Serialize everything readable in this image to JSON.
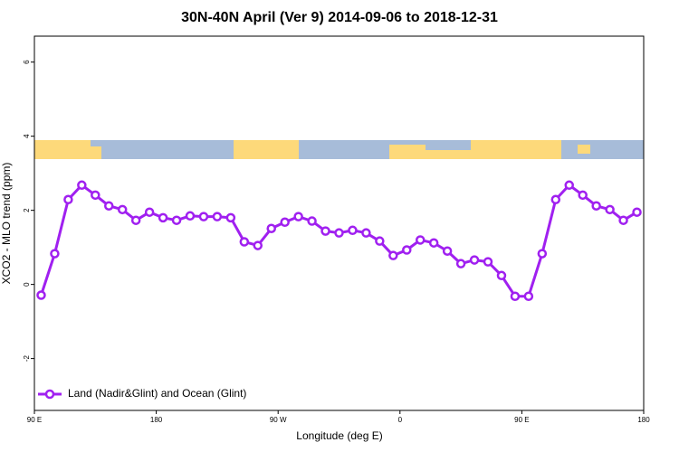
{
  "chart_data": {
    "type": "line",
    "title": "30N-40N April (Ver 9)   2014-09-06 to 2018-12-31",
    "x_label": "Longitude (deg E)",
    "y_label": "XCO2 - MLO trend (ppm)",
    "x": [
      95,
      105,
      115,
      125,
      135,
      145,
      155,
      165,
      175,
      185,
      195,
      205,
      215,
      225,
      235,
      245,
      255,
      265,
      275,
      285,
      295,
      305,
      315,
      325,
      335,
      345,
      355,
      365,
      375,
      385,
      395,
      405,
      415,
      425,
      435,
      445,
      455,
      465,
      475,
      485,
      495,
      505,
      515,
      525,
      535
    ],
    "series": [
      {
        "name": "Land (Nadir&Glint) and Ocean (Glint)",
        "color": "#a020f0",
        "values": [
          -0.29,
          0.83,
          2.29,
          2.68,
          2.41,
          2.12,
          2.02,
          1.73,
          1.95,
          1.8,
          1.73,
          1.85,
          1.83,
          1.83,
          1.8,
          1.15,
          1.05,
          1.51,
          1.68,
          1.83,
          1.71,
          1.44,
          1.39,
          1.46,
          1.39,
          1.17,
          0.78,
          0.93,
          1.2,
          1.12,
          0.9,
          0.56,
          0.66,
          0.61,
          0.24,
          -0.32,
          -0.32,
          0.83,
          2.29,
          2.68,
          2.41,
          2.12,
          2.02,
          1.73,
          1.95
        ]
      }
    ],
    "xlim": [
      90,
      540
    ],
    "xticks": [
      {
        "value": 90,
        "label": "90 E"
      },
      180,
      {
        "value": 270,
        "label": "90 W"
      },
      {
        "value": 360,
        "label": "0"
      },
      {
        "value": 450,
        "label": "90 E"
      },
      {
        "value": 540,
        "label": "180"
      }
    ],
    "ylim": [
      -3.4,
      6.7
    ],
    "yticks": [
      -2,
      0,
      2,
      4,
      6
    ],
    "legend": "bottom-left",
    "grid": false
  }
}
